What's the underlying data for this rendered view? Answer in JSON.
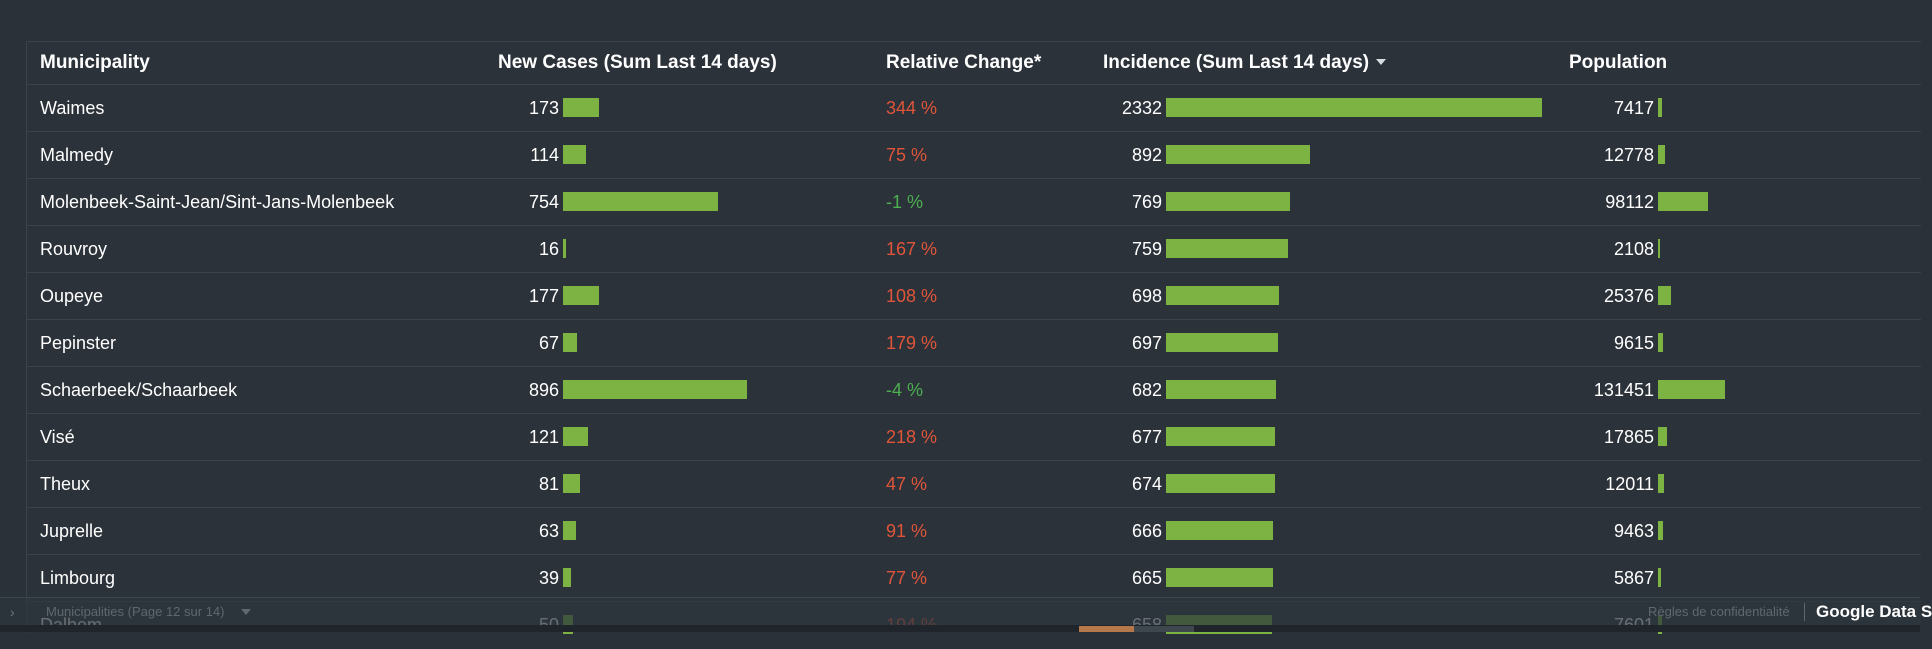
{
  "table": {
    "headers": {
      "municipality": "Municipality",
      "new_cases": "New Cases (Sum Last 14 days)",
      "relative_change": "Relative Change*",
      "incidence": "Incidence (Sum Last 14 days)",
      "population": "Population"
    },
    "sort": {
      "column": "incidence",
      "direction": "descending"
    },
    "rows": [
      {
        "municipality": "Waimes",
        "new_cases": "173",
        "relative_change": "344 %",
        "change_sign": "up",
        "incidence": "2332",
        "population": "7417"
      },
      {
        "municipality": "Malmedy",
        "new_cases": "114",
        "relative_change": "75 %",
        "change_sign": "up",
        "incidence": "892",
        "population": "12778"
      },
      {
        "municipality": "Molenbeek-Saint-Jean/Sint-Jans-Molenbeek",
        "new_cases": "754",
        "relative_change": "-1 %",
        "change_sign": "down",
        "incidence": "769",
        "population": "98112"
      },
      {
        "municipality": "Rouvroy",
        "new_cases": "16",
        "relative_change": "167 %",
        "change_sign": "up",
        "incidence": "759",
        "population": "2108"
      },
      {
        "municipality": "Oupeye",
        "new_cases": "177",
        "relative_change": "108 %",
        "change_sign": "up",
        "incidence": "698",
        "population": "25376"
      },
      {
        "municipality": "Pepinster",
        "new_cases": "67",
        "relative_change": "179 %",
        "change_sign": "up",
        "incidence": "697",
        "population": "9615"
      },
      {
        "municipality": "Schaerbeek/Schaarbeek",
        "new_cases": "896",
        "relative_change": "-4 %",
        "change_sign": "down",
        "incidence": "682",
        "population": "131451"
      },
      {
        "municipality": "Visé",
        "new_cases": "121",
        "relative_change": "218 %",
        "change_sign": "up",
        "incidence": "677",
        "population": "17865"
      },
      {
        "municipality": "Theux",
        "new_cases": "81",
        "relative_change": "47 %",
        "change_sign": "up",
        "incidence": "674",
        "population": "12011"
      },
      {
        "municipality": "Juprelle",
        "new_cases": "63",
        "relative_change": "91 %",
        "change_sign": "up",
        "incidence": "666",
        "population": "9463"
      },
      {
        "municipality": "Limbourg",
        "new_cases": "39",
        "relative_change": "77 %",
        "change_sign": "up",
        "incidence": "665",
        "population": "5867"
      },
      {
        "municipality": "Dalhem",
        "new_cases": "50",
        "relative_change": "194 %",
        "change_sign": "up",
        "incidence": "658",
        "population": "7601"
      }
    ],
    "bar_color": "#7cb342",
    "positive_change_color": "#e0553a",
    "negative_change_color": "#4caf50"
  },
  "footer": {
    "page_label": "Municipalities (Page 12 sur 14)",
    "privacy_link": "Règles de confidentialité",
    "brand": "Google Data S"
  },
  "icons": {
    "sort": "caret-down-icon",
    "expand": "chevron-right-icon",
    "page_dropdown": "caret-down-icon"
  }
}
